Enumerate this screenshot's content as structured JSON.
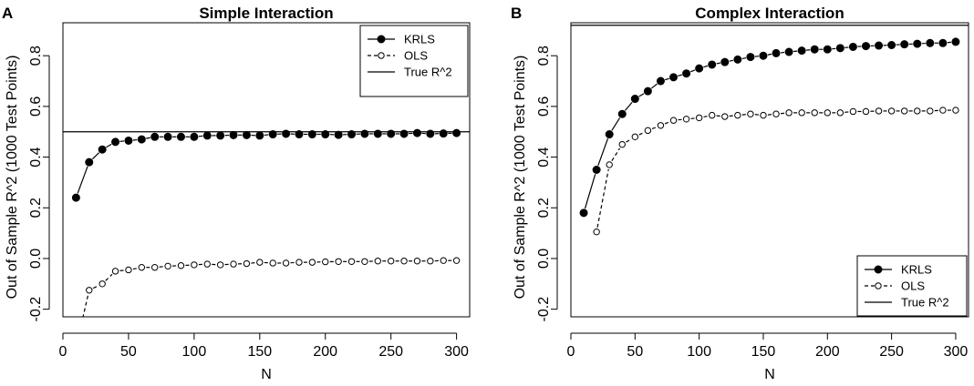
{
  "chart_data": [
    {
      "type": "line",
      "panel_label": "A",
      "title": "Simple Interaction",
      "xlabel": "N",
      "ylabel": "Out of Sample R^2 (1000 Test Points)",
      "xlim": [
        0,
        310
      ],
      "ylim": [
        -0.23,
        0.93
      ],
      "x_ticks": [
        "0",
        "50",
        "100",
        "150",
        "200",
        "250",
        "300"
      ],
      "x_tick_values": [
        0,
        50,
        100,
        150,
        200,
        250,
        300
      ],
      "y_ticks": [
        "-0.2",
        "0.0",
        "0.2",
        "0.4",
        "0.6",
        "0.8"
      ],
      "y_tick_values": [
        -0.2,
        0.0,
        0.2,
        0.4,
        0.6,
        0.8
      ],
      "legend_position": "top-right",
      "true_r2": 0.5,
      "x": [
        10,
        20,
        30,
        40,
        50,
        60,
        70,
        80,
        90,
        100,
        110,
        120,
        130,
        140,
        150,
        160,
        170,
        180,
        190,
        200,
        210,
        220,
        230,
        240,
        250,
        260,
        270,
        280,
        290,
        300
      ],
      "series": [
        {
          "name": "KRLS",
          "marker": "filled-circle",
          "line": "solid",
          "values": [
            0.24,
            0.38,
            0.43,
            0.46,
            0.465,
            0.47,
            0.48,
            0.48,
            0.48,
            0.48,
            0.485,
            0.485,
            0.487,
            0.487,
            0.485,
            0.49,
            0.492,
            0.49,
            0.49,
            0.49,
            0.488,
            0.49,
            0.492,
            0.492,
            0.492,
            0.492,
            0.495,
            0.492,
            0.493,
            0.495
          ]
        },
        {
          "name": "OLS",
          "marker": "open-circle",
          "line": "dashed",
          "values": [
            -0.35,
            -0.125,
            -0.1,
            -0.05,
            -0.045,
            -0.035,
            -0.035,
            -0.03,
            -0.028,
            -0.025,
            -0.022,
            -0.025,
            -0.022,
            -0.02,
            -0.015,
            -0.018,
            -0.018,
            -0.015,
            -0.015,
            -0.013,
            -0.012,
            -0.012,
            -0.012,
            -0.01,
            -0.01,
            -0.01,
            -0.01,
            -0.01,
            -0.008,
            -0.008
          ]
        }
      ],
      "reference_line": {
        "name": "True R^2",
        "value": 0.5
      }
    },
    {
      "type": "line",
      "panel_label": "B",
      "title": "Complex Interaction",
      "xlabel": "N",
      "ylabel": "Out of Sample R^2 (1000 Test Points)",
      "xlim": [
        0,
        310
      ],
      "ylim": [
        -0.23,
        0.93
      ],
      "x_ticks": [
        "0",
        "50",
        "100",
        "150",
        "200",
        "250",
        "300"
      ],
      "x_tick_values": [
        0,
        50,
        100,
        150,
        200,
        250,
        300
      ],
      "y_ticks": [
        "-0.2",
        "0.0",
        "0.2",
        "0.4",
        "0.6",
        "0.8"
      ],
      "y_tick_values": [
        -0.2,
        0.0,
        0.2,
        0.4,
        0.6,
        0.8
      ],
      "legend_position": "bottom-right",
      "true_r2": 0.92,
      "x": [
        10,
        20,
        30,
        40,
        50,
        60,
        70,
        80,
        90,
        100,
        110,
        120,
        130,
        140,
        150,
        160,
        170,
        180,
        190,
        200,
        210,
        220,
        230,
        240,
        250,
        260,
        270,
        280,
        290,
        300
      ],
      "series": [
        {
          "name": "KRLS",
          "marker": "filled-circle",
          "line": "solid",
          "values": [
            0.18,
            0.35,
            0.49,
            0.57,
            0.63,
            0.66,
            0.7,
            0.715,
            0.73,
            0.75,
            0.765,
            0.775,
            0.785,
            0.795,
            0.8,
            0.81,
            0.815,
            0.82,
            0.825,
            0.825,
            0.83,
            0.835,
            0.838,
            0.84,
            0.842,
            0.845,
            0.847,
            0.85,
            0.85,
            0.855
          ]
        },
        {
          "name": "OLS",
          "marker": "open-circle",
          "line": "dashed",
          "values": [
            null,
            0.105,
            0.37,
            0.45,
            0.48,
            0.505,
            0.525,
            0.545,
            0.55,
            0.555,
            0.565,
            0.56,
            0.565,
            0.57,
            0.565,
            0.57,
            0.575,
            0.575,
            0.575,
            0.575,
            0.575,
            0.58,
            0.58,
            0.582,
            0.582,
            0.582,
            0.582,
            0.582,
            0.585,
            0.585
          ]
        }
      ],
      "reference_line": {
        "name": "True R^2",
        "value": 0.92
      }
    }
  ]
}
